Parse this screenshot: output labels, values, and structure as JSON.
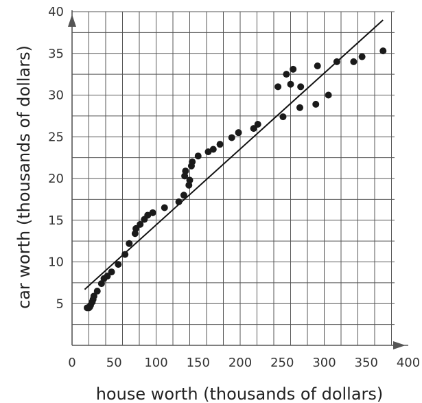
{
  "chart_data": {
    "type": "scatter",
    "title": "",
    "xlabel": "house worth (thousands of dollars)",
    "ylabel": "car worth (thousands of dollars)",
    "xlim": [
      0,
      400
    ],
    "ylim": [
      0,
      40
    ],
    "x_ticks": [
      0,
      50,
      100,
      150,
      200,
      250,
      300,
      350,
      400
    ],
    "y_ticks": [
      5,
      10,
      15,
      20,
      25,
      30,
      35,
      40
    ],
    "x_grid_step": 20,
    "y_grid_step": 2.5,
    "grid": true,
    "axis_arrows": true,
    "color": "#1a1a1a",
    "points": [
      {
        "x": 18,
        "y": 4.5
      },
      {
        "x": 20,
        "y": 4.5
      },
      {
        "x": 21,
        "y": 4.6
      },
      {
        "x": 22,
        "y": 4.8
      },
      {
        "x": 24,
        "y": 5.2
      },
      {
        "x": 25,
        "y": 5.5
      },
      {
        "x": 26,
        "y": 5.9
      },
      {
        "x": 30,
        "y": 6.5
      },
      {
        "x": 35,
        "y": 7.4
      },
      {
        "x": 38,
        "y": 8.0
      },
      {
        "x": 42,
        "y": 8.3
      },
      {
        "x": 47,
        "y": 8.8
      },
      {
        "x": 55,
        "y": 9.7
      },
      {
        "x": 63,
        "y": 10.9
      },
      {
        "x": 68,
        "y": 12.2
      },
      {
        "x": 75,
        "y": 13.4
      },
      {
        "x": 76,
        "y": 14.0
      },
      {
        "x": 81,
        "y": 14.5
      },
      {
        "x": 86,
        "y": 15.1
      },
      {
        "x": 90,
        "y": 15.6
      },
      {
        "x": 96,
        "y": 15.9
      },
      {
        "x": 110,
        "y": 16.5
      },
      {
        "x": 127,
        "y": 17.2
      },
      {
        "x": 133,
        "y": 18.0
      },
      {
        "x": 134,
        "y": 20.3
      },
      {
        "x": 135,
        "y": 20.9
      },
      {
        "x": 139,
        "y": 19.2
      },
      {
        "x": 140,
        "y": 19.8
      },
      {
        "x": 142,
        "y": 21.5
      },
      {
        "x": 143,
        "y": 22.0
      },
      {
        "x": 150,
        "y": 22.7
      },
      {
        "x": 162,
        "y": 23.2
      },
      {
        "x": 168,
        "y": 23.5
      },
      {
        "x": 176,
        "y": 24.1
      },
      {
        "x": 190,
        "y": 24.9
      },
      {
        "x": 198,
        "y": 25.5
      },
      {
        "x": 216,
        "y": 26.0
      },
      {
        "x": 221,
        "y": 26.5
      },
      {
        "x": 245,
        "y": 31.0
      },
      {
        "x": 251,
        "y": 27.4
      },
      {
        "x": 255,
        "y": 32.5
      },
      {
        "x": 260,
        "y": 31.3
      },
      {
        "x": 263,
        "y": 33.1
      },
      {
        "x": 272,
        "y": 31.0
      },
      {
        "x": 271,
        "y": 28.5
      },
      {
        "x": 290,
        "y": 28.9
      },
      {
        "x": 292,
        "y": 33.5
      },
      {
        "x": 305,
        "y": 30.0
      },
      {
        "x": 315,
        "y": 34.0
      },
      {
        "x": 335,
        "y": 34.0
      },
      {
        "x": 345,
        "y": 34.6
      },
      {
        "x": 370,
        "y": 35.3
      }
    ],
    "fit_line": [
      {
        "x": 15,
        "y": 6.7
      },
      {
        "x": 370,
        "y": 39.0
      }
    ]
  }
}
